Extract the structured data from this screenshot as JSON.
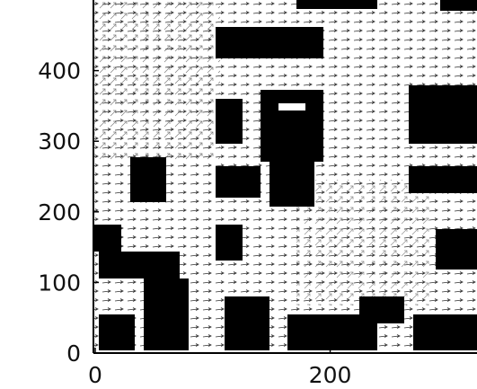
{
  "chart_data": {
    "type": "field",
    "xlim": [
      0,
      325
    ],
    "ylim": [
      0,
      500
    ],
    "xticks": [
      0,
      200
    ],
    "yticks": [
      0,
      100,
      200,
      300,
      400
    ]
  }
}
